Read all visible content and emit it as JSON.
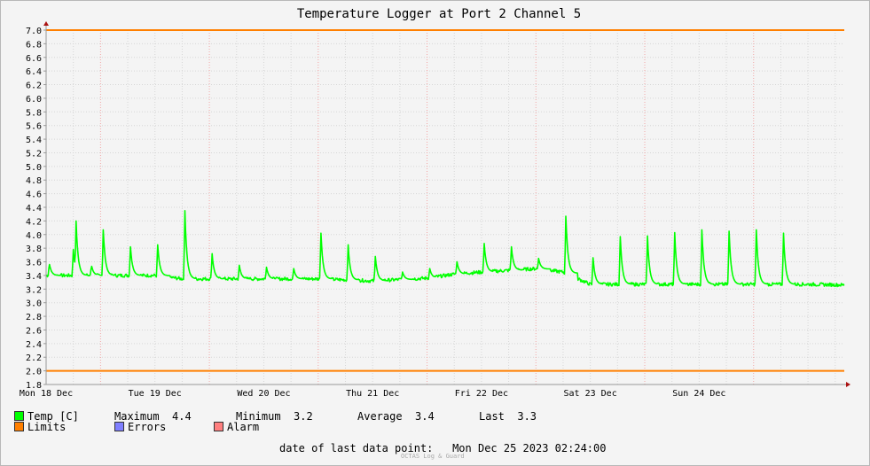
{
  "chart_data": {
    "type": "line",
    "title": "Temperature Logger at Port 2 Channel 5",
    "ylim": [
      1.8,
      7.0
    ],
    "y_ticks": [
      "1.8",
      "2.0",
      "2.2",
      "2.4",
      "2.6",
      "2.8",
      "3.0",
      "3.2",
      "3.4",
      "3.6",
      "3.8",
      "4.0",
      "4.2",
      "4.4",
      "4.6",
      "4.8",
      "5.0",
      "5.2",
      "5.4",
      "5.6",
      "5.8",
      "6.0",
      "6.2",
      "6.4",
      "6.6",
      "6.8",
      "7.0"
    ],
    "x_tick_labels": [
      "Mon 18 Dec",
      "Tue 19 Dec",
      "Wed 20 Dec",
      "Thu 21 Dec",
      "Fri 22 Dec",
      "Sat 23 Dec",
      "Sun 24 Dec"
    ],
    "x_range_hours": [
      0,
      176
    ],
    "grid": true,
    "limits": {
      "upper": 7.0,
      "lower": 2.0,
      "color": "#ff7f00"
    },
    "series": [
      {
        "name": "Temp [C]",
        "color": "#00ff00",
        "baseline_points": [
          [
            0,
            3.4
          ],
          [
            24,
            3.4
          ],
          [
            30,
            3.35
          ],
          [
            48,
            3.35
          ],
          [
            60,
            3.35
          ],
          [
            72,
            3.32
          ],
          [
            84,
            3.36
          ],
          [
            90,
            3.42
          ],
          [
            96,
            3.45
          ],
          [
            108,
            3.5
          ],
          [
            114,
            3.45
          ],
          [
            120,
            3.27
          ],
          [
            144,
            3.27
          ],
          [
            168,
            3.27
          ],
          [
            176,
            3.26
          ]
        ],
        "spikes": [
          [
            0.7,
            3.58
          ],
          [
            6,
            3.78
          ],
          [
            6.6,
            4.2
          ],
          [
            10,
            3.55
          ],
          [
            12.6,
            4.07
          ],
          [
            18.6,
            3.82
          ],
          [
            24.6,
            3.85
          ],
          [
            30.6,
            4.35
          ],
          [
            36.6,
            3.72
          ],
          [
            42.6,
            3.55
          ],
          [
            48.6,
            3.52
          ],
          [
            54.6,
            3.5
          ],
          [
            60.6,
            4.02
          ],
          [
            66.6,
            3.85
          ],
          [
            72.6,
            3.68
          ],
          [
            78.6,
            3.45
          ],
          [
            84.6,
            3.5
          ],
          [
            90.6,
            3.6
          ],
          [
            96.6,
            3.87
          ],
          [
            102.6,
            3.82
          ],
          [
            108.6,
            3.65
          ],
          [
            114.6,
            4.27
          ],
          [
            120.6,
            3.66
          ],
          [
            126.6,
            3.97
          ],
          [
            132.6,
            3.98
          ],
          [
            138.6,
            4.03
          ],
          [
            144.6,
            4.07
          ],
          [
            150.6,
            4.05
          ],
          [
            156.6,
            4.07
          ],
          [
            162.6,
            4.02
          ]
        ]
      }
    ]
  },
  "legend": {
    "temp_label": "Temp [C]",
    "temp_color": "#00ff00",
    "maximum_label": "Maximum",
    "maximum_value": "4.4",
    "minimum_label": "Minimum",
    "minimum_value": "3.2",
    "average_label": "Average",
    "average_value": "3.4",
    "last_label": "Last",
    "last_value": "3.3",
    "limits_label": "Limits",
    "limits_color": "#ff7f00",
    "errors_label": "Errors",
    "errors_color": "#7f7fff",
    "alarm_label": "Alarm",
    "alarm_color": "#ff7f7f"
  },
  "footer": {
    "last_point_label": "date of last data point:",
    "last_point_value": "Mon Dec 25 2023 02:24:00",
    "credit": "OCTAS Log & Guard"
  }
}
